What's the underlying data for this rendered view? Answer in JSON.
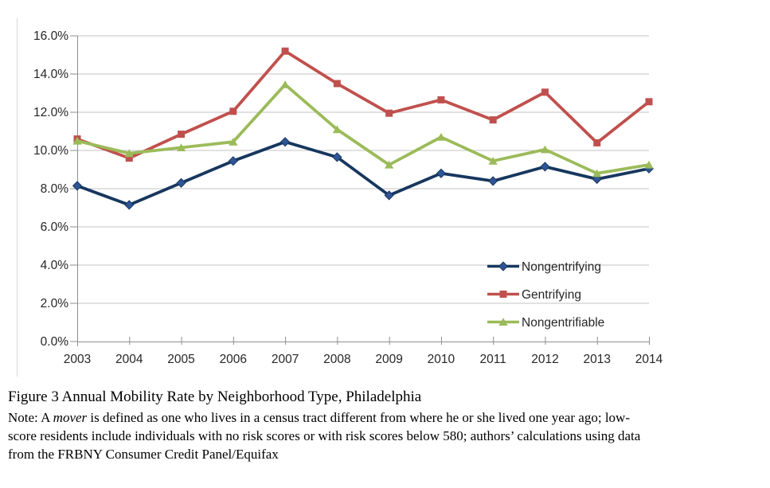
{
  "chart_data": {
    "type": "line",
    "title": "",
    "categories": [
      "2003",
      "2004",
      "2005",
      "2006",
      "2007",
      "2008",
      "2009",
      "2010",
      "2011",
      "2012",
      "2013",
      "2014"
    ],
    "series": [
      {
        "name": "Nongentrifying",
        "line_color": "#17375e",
        "marker": "diamond",
        "marker_fill": "#2f5597",
        "values": [
          8.15,
          7.15,
          8.3,
          9.45,
          10.45,
          9.65,
          7.65,
          8.8,
          8.4,
          9.15,
          8.5,
          9.05
        ]
      },
      {
        "name": "Gentrifying",
        "line_color": "#c0504d",
        "marker": "square",
        "marker_fill": "#c0504d",
        "values": [
          10.6,
          9.6,
          10.85,
          12.05,
          15.2,
          13.5,
          11.95,
          12.65,
          11.6,
          13.05,
          10.4,
          12.55
        ]
      },
      {
        "name": "Nongentrifiable",
        "line_color": "#9bbb59",
        "marker": "triangle",
        "marker_fill": "#9bbb59",
        "values": [
          10.5,
          9.85,
          10.15,
          10.45,
          13.45,
          11.1,
          9.25,
          10.7,
          9.45,
          10.05,
          8.8,
          9.25
        ]
      }
    ],
    "xlabel": "",
    "ylabel": "",
    "ylim": [
      0,
      16
    ],
    "ytick_step": 2,
    "ytick_labels": [
      "0.0%",
      "2.0%",
      "4.0%",
      "6.0%",
      "8.0%",
      "10.0%",
      "12.0%",
      "14.0%",
      "16.0%"
    ],
    "grid": true,
    "legend_position": "inside-right",
    "colors": {
      "gridline": "#c3c3c3",
      "axis": "#8e8e8e",
      "tick_text": "#262626"
    }
  },
  "caption": {
    "title": "Figure 3 Annual Mobility Rate by Neighborhood Type, Philadelphia",
    "note_line1_pre": "Note: A ",
    "note_line1_italic": "mover",
    "note_line1_post": " is defined as one who lives in a census tract different from where he or she lived one year ago; low-",
    "note_line2": "score residents include individuals with no risk scores or with risk scores below 580; authors’ calculations using data",
    "note_line3": "from the FRBNY Consumer Credit Panel/Equifax"
  }
}
